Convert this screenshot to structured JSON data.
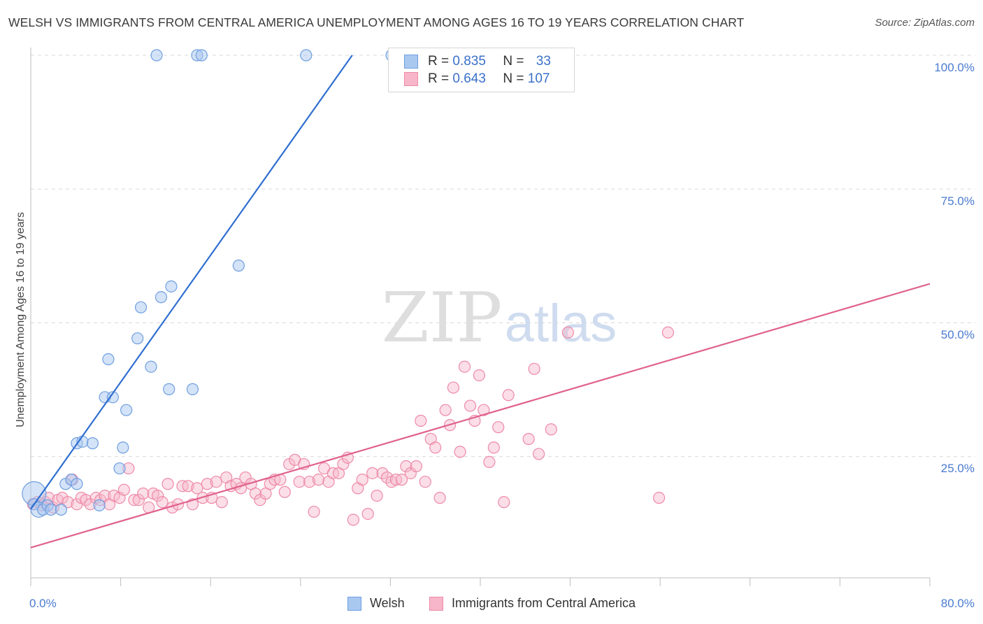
{
  "header": {
    "title": "WELSH VS IMMIGRANTS FROM CENTRAL AMERICA UNEMPLOYMENT AMONG AGES 16 TO 19 YEARS CORRELATION CHART",
    "source": "Source: ZipAtlas.com"
  },
  "watermark": {
    "zip": "ZIP",
    "atlas": "atlas"
  },
  "legend": {
    "rows": [
      {
        "r_label": "R = ",
        "r_value": "0.835",
        "n_label": "N = ",
        "n_value": "33",
        "color": "#a9c8f0"
      },
      {
        "r_label": "R = ",
        "r_value": "0.643",
        "n_label": "N = ",
        "n_value": "107",
        "color": "#f7b6c9"
      }
    ]
  },
  "bottom_legend": {
    "welsh": "Welsh",
    "immigrants": "Immigrants from Central America"
  },
  "axis": {
    "ylabel": "Unemployment Among Ages 16 to 19 years",
    "yticks": [
      "100.0%",
      "75.0%",
      "50.0%",
      "25.0%"
    ],
    "xticks": [
      "0.0%",
      "80.0%"
    ]
  },
  "colors": {
    "welsh_fill": "#a9c8f0",
    "welsh_stroke": "#6f9fe0",
    "welsh_line": "#2f6fd0",
    "imm_fill": "#f7b6c9",
    "imm_stroke": "#ee8aa8",
    "imm_line": "#e0628e",
    "tick_text": "#4a7bd0",
    "grid": "#d8d8d8"
  },
  "chart_data": {
    "type": "scatter",
    "title": "WELSH VS IMMIGRANTS FROM CENTRAL AMERICA UNEMPLOYMENT AMONG AGES 16 TO 19 YEARS CORRELATION CHART",
    "xlabel": "",
    "ylabel": "Unemployment Among Ages 16 to 19 years",
    "xlim": [
      0,
      80
    ],
    "ylim": [
      0,
      102
    ],
    "x_unit": "%",
    "y_unit": "%",
    "grid": true,
    "legend_position": "top-center",
    "series": [
      {
        "name": "Welsh",
        "R": 0.835,
        "N": 33,
        "trend": {
          "x": [
            0,
            28.6
          ],
          "y": [
            15.2,
            100.0
          ]
        },
        "points": [
          [
            0.3,
            18.1
          ],
          [
            0.3,
            16.1
          ],
          [
            0.7,
            15.1
          ],
          [
            1.1,
            15.1
          ],
          [
            1.5,
            15.9
          ],
          [
            1.8,
            15.1
          ],
          [
            2.7,
            15.1
          ],
          [
            3.1,
            19.9
          ],
          [
            3.6,
            20.7
          ],
          [
            4.1,
            19.9
          ],
          [
            4.1,
            27.5
          ],
          [
            4.6,
            27.8
          ],
          [
            5.5,
            27.5
          ],
          [
            6.1,
            15.9
          ],
          [
            6.6,
            36.1
          ],
          [
            6.9,
            43.2
          ],
          [
            7.3,
            36.1
          ],
          [
            7.9,
            22.8
          ],
          [
            8.2,
            26.7
          ],
          [
            8.5,
            33.7
          ],
          [
            9.5,
            47.1
          ],
          [
            9.8,
            52.9
          ],
          [
            10.7,
            41.8
          ],
          [
            11.2,
            100.0
          ],
          [
            11.6,
            54.8
          ],
          [
            12.3,
            37.6
          ],
          [
            12.5,
            56.8
          ],
          [
            14.4,
            37.6
          ],
          [
            14.8,
            100.0
          ],
          [
            15.2,
            100.0
          ],
          [
            18.5,
            60.7
          ],
          [
            24.5,
            100.0
          ],
          [
            32.1,
            100.0
          ]
        ]
      },
      {
        "name": "Immigrants from Central America",
        "R": 0.643,
        "N": 107,
        "trend": {
          "x": [
            0,
            80
          ],
          "y": [
            8.0,
            57.3
          ]
        },
        "points": [
          [
            0.2,
            16.1
          ],
          [
            0.6,
            16.5
          ],
          [
            1.0,
            15.9
          ],
          [
            1.3,
            16.5
          ],
          [
            1.6,
            17.3
          ],
          [
            2.0,
            15.5
          ],
          [
            2.4,
            16.9
          ],
          [
            2.8,
            17.3
          ],
          [
            3.3,
            16.5
          ],
          [
            3.7,
            20.7
          ],
          [
            4.1,
            16.1
          ],
          [
            4.5,
            17.3
          ],
          [
            4.9,
            16.9
          ],
          [
            5.3,
            16.1
          ],
          [
            5.8,
            17.3
          ],
          [
            6.2,
            16.9
          ],
          [
            6.6,
            17.7
          ],
          [
            7.0,
            16.1
          ],
          [
            7.4,
            17.7
          ],
          [
            7.9,
            17.3
          ],
          [
            8.3,
            18.8
          ],
          [
            8.7,
            22.8
          ],
          [
            9.2,
            16.9
          ],
          [
            9.6,
            16.9
          ],
          [
            10.0,
            18.1
          ],
          [
            10.5,
            15.5
          ],
          [
            10.9,
            18.1
          ],
          [
            11.3,
            17.7
          ],
          [
            11.7,
            16.5
          ],
          [
            12.2,
            19.9
          ],
          [
            12.6,
            15.5
          ],
          [
            13.1,
            16.1
          ],
          [
            13.5,
            19.5
          ],
          [
            14.0,
            19.5
          ],
          [
            14.4,
            16.1
          ],
          [
            14.8,
            19.1
          ],
          [
            15.3,
            17.3
          ],
          [
            15.7,
            19.9
          ],
          [
            16.1,
            17.3
          ],
          [
            16.5,
            20.3
          ],
          [
            17.0,
            16.5
          ],
          [
            17.4,
            21.1
          ],
          [
            17.8,
            19.5
          ],
          [
            18.3,
            19.9
          ],
          [
            18.7,
            19.1
          ],
          [
            19.1,
            21.1
          ],
          [
            19.6,
            19.9
          ],
          [
            20.0,
            18.1
          ],
          [
            20.4,
            16.9
          ],
          [
            20.9,
            18.1
          ],
          [
            21.3,
            19.9
          ],
          [
            21.7,
            20.7
          ],
          [
            22.2,
            20.7
          ],
          [
            22.6,
            18.4
          ],
          [
            23.0,
            23.6
          ],
          [
            23.5,
            24.4
          ],
          [
            23.9,
            20.3
          ],
          [
            24.3,
            23.6
          ],
          [
            24.8,
            20.3
          ],
          [
            25.2,
            14.7
          ],
          [
            25.6,
            20.7
          ],
          [
            26.1,
            22.8
          ],
          [
            26.5,
            20.3
          ],
          [
            26.9,
            21.9
          ],
          [
            27.4,
            21.9
          ],
          [
            27.8,
            23.6
          ],
          [
            28.2,
            24.8
          ],
          [
            28.7,
            13.2
          ],
          [
            29.1,
            19.1
          ],
          [
            29.5,
            20.7
          ],
          [
            30.0,
            14.3
          ],
          [
            30.4,
            21.9
          ],
          [
            30.8,
            17.7
          ],
          [
            31.3,
            21.9
          ],
          [
            31.7,
            21.1
          ],
          [
            32.1,
            20.3
          ],
          [
            32.5,
            20.7
          ],
          [
            33.0,
            20.7
          ],
          [
            33.4,
            23.2
          ],
          [
            33.8,
            21.9
          ],
          [
            34.3,
            23.2
          ],
          [
            34.7,
            31.7
          ],
          [
            35.1,
            20.3
          ],
          [
            35.6,
            28.3
          ],
          [
            36.0,
            26.7
          ],
          [
            36.4,
            17.3
          ],
          [
            36.9,
            33.7
          ],
          [
            37.3,
            30.9
          ],
          [
            37.6,
            37.9
          ],
          [
            38.2,
            25.9
          ],
          [
            38.6,
            41.8
          ],
          [
            39.1,
            34.5
          ],
          [
            39.5,
            31.7
          ],
          [
            39.9,
            40.2
          ],
          [
            40.3,
            33.7
          ],
          [
            40.8,
            24.0
          ],
          [
            41.2,
            26.7
          ],
          [
            41.6,
            30.5
          ],
          [
            42.1,
            16.5
          ],
          [
            42.5,
            36.5
          ],
          [
            44.3,
            28.3
          ],
          [
            44.8,
            41.4
          ],
          [
            45.2,
            25.5
          ],
          [
            46.3,
            30.1
          ],
          [
            47.8,
            48.2
          ],
          [
            55.9,
            17.3
          ],
          [
            56.7,
            48.2
          ]
        ]
      }
    ]
  }
}
